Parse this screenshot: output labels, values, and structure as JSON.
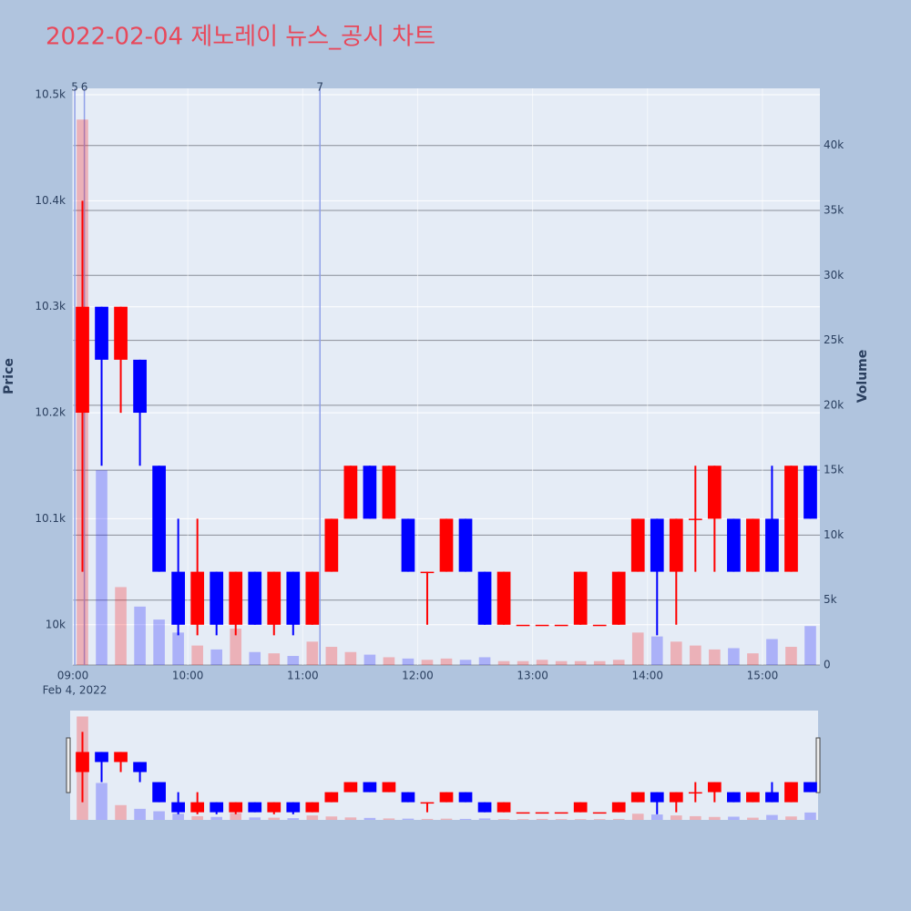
{
  "chart_data": {
    "type": "candlestick",
    "title": "2022-02-04 제노레이 뉴스_공시 차트",
    "y_label": "Price",
    "y2_label": "Volume",
    "x_date_label": "Feb 4, 2022",
    "x": [
      "09:00",
      "09:10",
      "09:20",
      "09:30",
      "09:40",
      "09:50",
      "10:00",
      "10:10",
      "10:20",
      "10:30",
      "10:40",
      "10:50",
      "11:00",
      "11:10",
      "11:20",
      "11:30",
      "11:40",
      "11:50",
      "12:00",
      "12:10",
      "12:20",
      "12:30",
      "12:40",
      "12:50",
      "13:00",
      "13:10",
      "13:20",
      "13:30",
      "13:40",
      "13:50",
      "14:00",
      "14:10",
      "14:20",
      "14:30",
      "14:40",
      "14:50",
      "15:00",
      "15:10",
      "15:20"
    ],
    "open": [
      10200,
      10300,
      10250,
      10250,
      10150,
      10050,
      10000,
      10050,
      10000,
      10050,
      10000,
      10050,
      10000,
      10050,
      10100,
      10150,
      10100,
      10100,
      10050,
      10050,
      10100,
      10050,
      10000,
      10000,
      10000,
      10000,
      10000,
      10000,
      10000,
      10050,
      10100,
      10050,
      10100,
      10100,
      10100,
      10050,
      10100,
      10050,
      10150
    ],
    "high": [
      10400,
      10300,
      10300,
      10250,
      10150,
      10100,
      10100,
      10050,
      10050,
      10050,
      10050,
      10050,
      10050,
      10100,
      10150,
      10150,
      10150,
      10100,
      10050,
      10100,
      10100,
      10050,
      10050,
      10000,
      10000,
      10000,
      10050,
      10000,
      10050,
      10100,
      10100,
      10100,
      10150,
      10150,
      10100,
      10100,
      10150,
      10150,
      10150
    ],
    "low": [
      10050,
      10150,
      10200,
      10150,
      10050,
      9990,
      9990,
      9990,
      9990,
      10000,
      9990,
      9990,
      10000,
      10050,
      10100,
      10100,
      10100,
      10050,
      10000,
      10050,
      10050,
      10000,
      10000,
      10000,
      10000,
      10000,
      10000,
      10000,
      10000,
      10050,
      9990,
      10000,
      10050,
      10050,
      10050,
      10050,
      10050,
      10050,
      10100
    ],
    "close": [
      10300,
      10250,
      10300,
      10200,
      10050,
      10000,
      10050,
      10000,
      10050,
      10000,
      10050,
      10000,
      10050,
      10100,
      10150,
      10100,
      10150,
      10050,
      10050,
      10100,
      10050,
      10000,
      10050,
      10000,
      10000,
      10000,
      10050,
      10000,
      10050,
      10100,
      10050,
      10100,
      10100,
      10150,
      10050,
      10100,
      10050,
      10150,
      10100
    ],
    "volume": [
      42000,
      15000,
      6000,
      4500,
      3500,
      2500,
      1500,
      1200,
      2800,
      1000,
      900,
      700,
      1800,
      1400,
      1000,
      800,
      600,
      500,
      400,
      500,
      400,
      600,
      300,
      300,
      400,
      300,
      300,
      300,
      400,
      2500,
      2200,
      1800,
      1500,
      1200,
      1300,
      900,
      2000,
      1400,
      3000
    ],
    "increasing_color": "#ff0000",
    "decreasing_color": "#0000ff",
    "xlim": [
      "09:00",
      "15:30"
    ],
    "xticks": [
      "09:00",
      "10:00",
      "11:00",
      "12:00",
      "13:00",
      "14:00",
      "15:00"
    ],
    "ylim": [
      9962,
      10506
    ],
    "yticks": [
      {
        "value": 10000,
        "label": "10k"
      },
      {
        "value": 10100,
        "label": "10.1k"
      },
      {
        "value": 10200,
        "label": "10.2k"
      },
      {
        "value": 10300,
        "label": "10.3k"
      },
      {
        "value": 10400,
        "label": "10.4k"
      },
      {
        "value": 10500,
        "label": "10.5k"
      }
    ],
    "y2lim": [
      0,
      44400
    ],
    "y2ticks": [
      0,
      {
        "value": 5000,
        "label": "5k"
      },
      {
        "value": 10000,
        "label": "10k"
      },
      {
        "value": 15000,
        "label": "15k"
      },
      {
        "value": 20000,
        "label": "20k"
      },
      {
        "value": 25000,
        "label": "25k"
      },
      {
        "value": 30000,
        "label": "30k"
      },
      {
        "value": 35000,
        "label": "35k"
      },
      {
        "value": 40000,
        "label": "40k"
      }
    ],
    "news": [
      {
        "label": "5",
        "x": "09:01"
      },
      {
        "label": "6",
        "x": "09:06"
      },
      {
        "label": "7",
        "x": "11:09"
      }
    ],
    "grid": true,
    "range_slider": true
  }
}
